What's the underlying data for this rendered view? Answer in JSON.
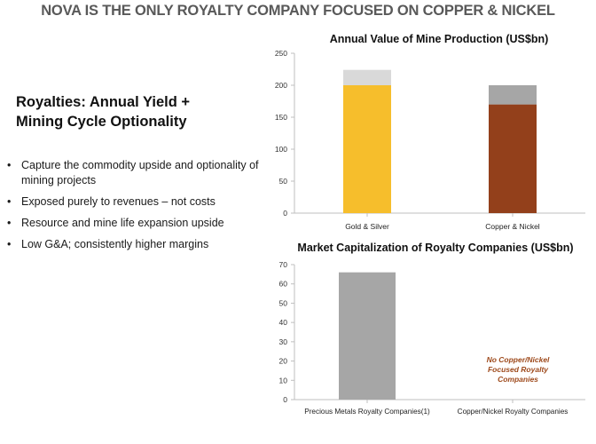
{
  "header": {
    "title": "NOVA IS THE ONLY ROYALTY COMPANY FOCUSED ON COPPER & NICKEL"
  },
  "left": {
    "subtitle_line1": "Royalties:  Annual Yield +",
    "subtitle_line2": "Mining Cycle Optionality",
    "bullet_symbol": "•",
    "bullets": [
      "Capture the commodity upside and optionality of mining projects",
      "Exposed purely to revenues – not costs",
      "Resource and mine life expansion upside",
      "Low G&A; consistently higher margins"
    ]
  },
  "colors": {
    "gold": "#F6BE2C",
    "gold_top": "#D9D9D9",
    "copper": "#93401B",
    "copper_top": "#A6A6A6",
    "precious": "#A6A6A6",
    "annotation": "#9E4A1C"
  },
  "chart_data": [
    {
      "type": "bar",
      "title": "Annual Value of Mine Production (US$bn)",
      "categories": [
        "Gold & Silver",
        "Copper & Nickel"
      ],
      "series": [
        {
          "values": [
            200,
            170
          ]
        },
        {
          "values": [
            24,
            30
          ]
        }
      ],
      "stacked": true,
      "ylim": [
        0,
        250
      ],
      "yticks": [
        0,
        50,
        100,
        150,
        200,
        250
      ],
      "grid": false
    },
    {
      "type": "bar",
      "title": "Market Capitalization of Royalty Companies (US$bn)",
      "categories": [
        "Precious Metals Royalty Companies(1)",
        "Copper/Nickel Royalty Companies"
      ],
      "values": [
        66,
        0
      ],
      "ylim": [
        0,
        70
      ],
      "yticks": [
        0,
        10,
        20,
        30,
        40,
        50,
        60,
        70
      ],
      "annotation": "No Copper/Nickel Focused Royalty Companies",
      "grid": false
    }
  ]
}
